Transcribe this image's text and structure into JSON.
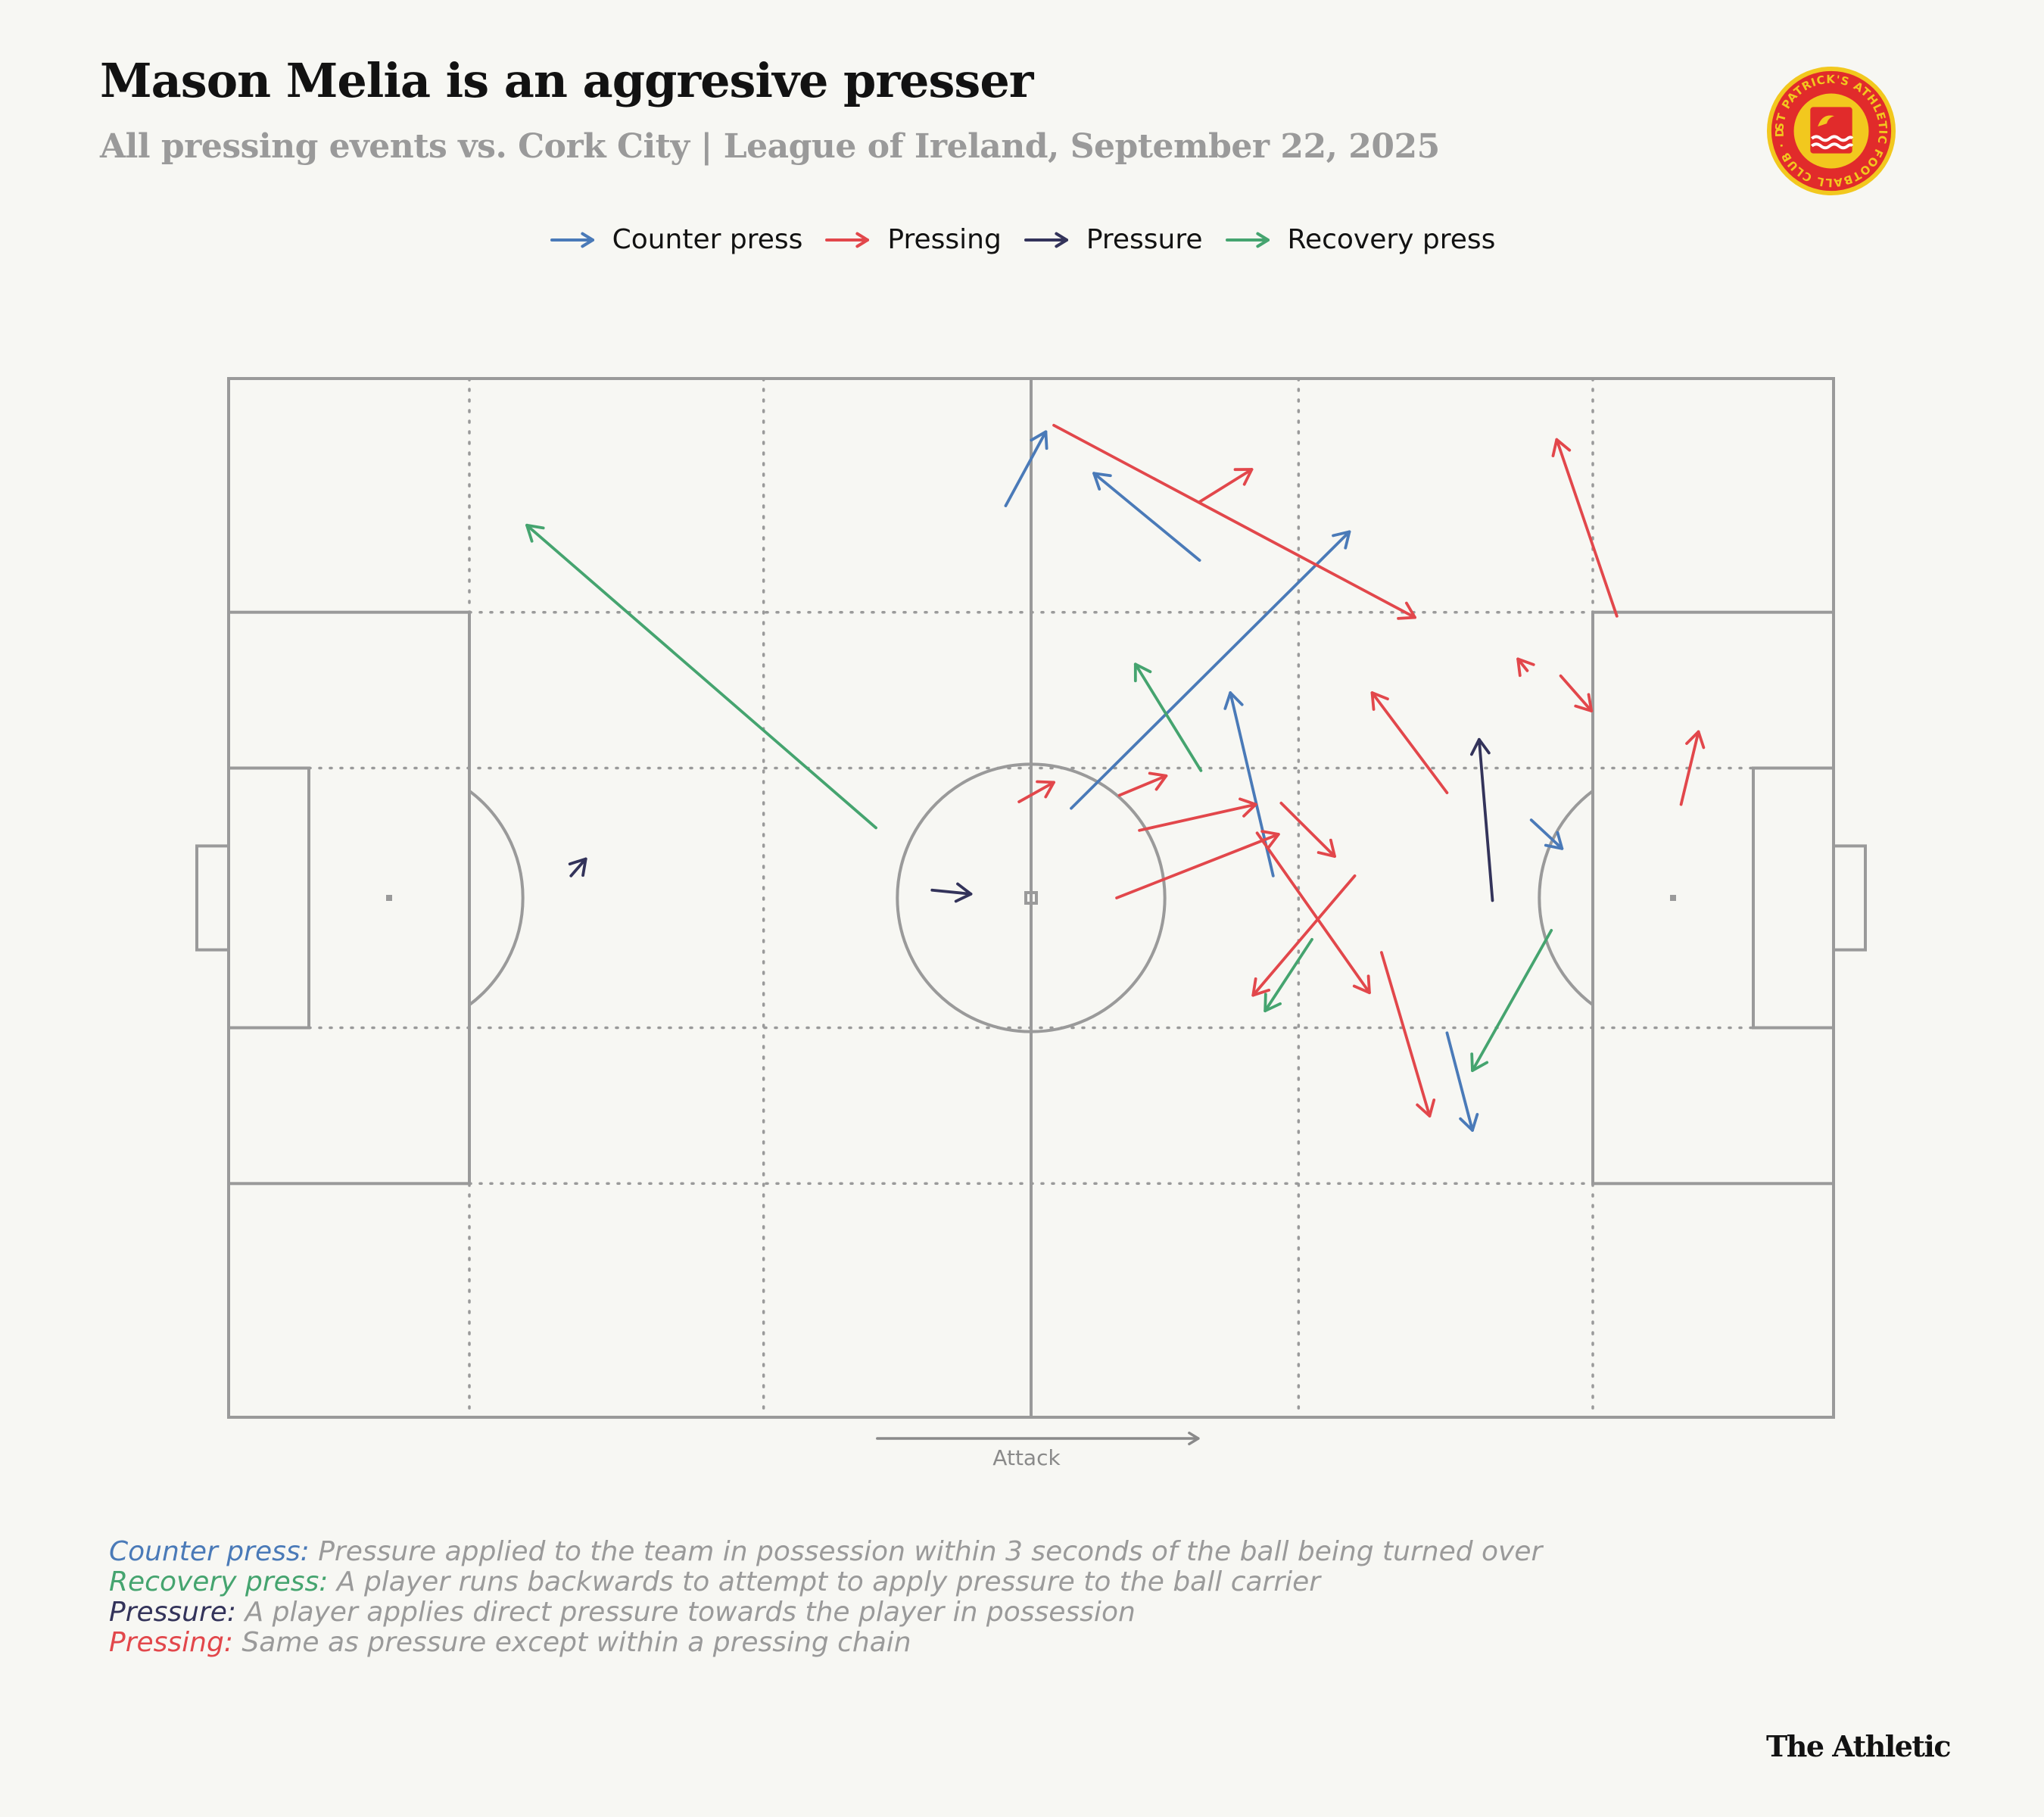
{
  "header": {
    "title": "Mason Melia is an aggresive presser",
    "subtitle": "All pressing events vs. Cork City | League of Ireland, September 22, 2025"
  },
  "crest": {
    "ring_text": "ST PATRICK'S ATHLETIC FOOTBALL CLUB · DUBLIN 1929 ·"
  },
  "legend": [
    {
      "label": "Counter press",
      "color": "#4a7ab8"
    },
    {
      "label": "Pressing",
      "color": "#e2474b"
    },
    {
      "label": "Pressure",
      "color": "#33335a"
    },
    {
      "label": "Recovery press",
      "color": "#45a46f"
    }
  ],
  "colors": {
    "counter": "#4a7ab8",
    "pressing": "#e2474b",
    "pressure": "#33335a",
    "recovery": "#45a46f",
    "pitch_line": "#9a9a9a"
  },
  "chart_data": {
    "type": "scatter",
    "title": "Mason Melia is an aggresive presser",
    "subtitle": "All pressing events vs. Cork City | League of Ireland, September 22, 2025",
    "pitch": {
      "length": 120,
      "width": 80,
      "attack_direction": "left-to-right"
    },
    "direction_label": "Attack",
    "legend_position": "top-center",
    "events": [
      {
        "type": "counter",
        "x1": 58.1,
        "y1": 9.8,
        "x2": 61.1,
        "y2": 4.1
      },
      {
        "type": "counter",
        "x1": 72.6,
        "y1": 14.0,
        "x2": 64.7,
        "y2": 7.3
      },
      {
        "type": "counter",
        "x1": 63.0,
        "y1": 33.1,
        "x2": 83.8,
        "y2": 11.8
      },
      {
        "type": "counter",
        "x1": 78.1,
        "y1": 38.3,
        "x2": 74.9,
        "y2": 24.2
      },
      {
        "type": "counter",
        "x1": 97.4,
        "y1": 34.0,
        "x2": 99.7,
        "y2": 36.2
      },
      {
        "type": "counter",
        "x1": 91.1,
        "y1": 50.4,
        "x2": 93.0,
        "y2": 57.9
      },
      {
        "type": "pressing",
        "x1": 61.7,
        "y1": 3.6,
        "x2": 88.7,
        "y2": 18.4
      },
      {
        "type": "pressing",
        "x1": 72.6,
        "y1": 9.5,
        "x2": 76.5,
        "y2": 7.0
      },
      {
        "type": "pressing",
        "x1": 103.8,
        "y1": 18.3,
        "x2": 99.3,
        "y2": 4.7
      },
      {
        "type": "pressing",
        "x1": 97.1,
        "y1": 22.5,
        "x2": 96.4,
        "y2": 21.6
      },
      {
        "type": "pressing",
        "x1": 99.6,
        "y1": 22.9,
        "x2": 101.9,
        "y2": 25.6
      },
      {
        "type": "pressing",
        "x1": 91.1,
        "y1": 31.9,
        "x2": 85.5,
        "y2": 24.2
      },
      {
        "type": "pressing",
        "x1": 108.6,
        "y1": 32.8,
        "x2": 109.9,
        "y2": 27.2
      },
      {
        "type": "pressing",
        "x1": 59.1,
        "y1": 32.6,
        "x2": 61.7,
        "y2": 31.1
      },
      {
        "type": "pressing",
        "x1": 66.6,
        "y1": 32.1,
        "x2": 70.1,
        "y2": 30.6
      },
      {
        "type": "pressing",
        "x1": 68.1,
        "y1": 34.8,
        "x2": 76.8,
        "y2": 32.8
      },
      {
        "type": "pressing",
        "x1": 66.4,
        "y1": 40.0,
        "x2": 78.5,
        "y2": 35.1
      },
      {
        "type": "pressing",
        "x1": 78.7,
        "y1": 32.7,
        "x2": 82.7,
        "y2": 36.8
      },
      {
        "type": "pressing",
        "x1": 84.2,
        "y1": 38.3,
        "x2": 76.6,
        "y2": 47.5
      },
      {
        "type": "pressing",
        "x1": 76.9,
        "y1": 35.0,
        "x2": 85.3,
        "y2": 47.3
      },
      {
        "type": "pressing",
        "x1": 86.2,
        "y1": 44.2,
        "x2": 89.8,
        "y2": 56.8
      },
      {
        "type": "pressure",
        "x1": 25.6,
        "y1": 38.3,
        "x2": 26.7,
        "y2": 37.0
      },
      {
        "type": "pressure",
        "x1": 52.6,
        "y1": 39.4,
        "x2": 55.5,
        "y2": 39.7
      },
      {
        "type": "pressure",
        "x1": 94.5,
        "y1": 40.2,
        "x2": 93.5,
        "y2": 27.8
      },
      {
        "type": "recovery",
        "x1": 48.4,
        "y1": 34.6,
        "x2": 22.3,
        "y2": 11.3
      },
      {
        "type": "recovery",
        "x1": 72.7,
        "y1": 30.2,
        "x2": 67.8,
        "y2": 22.0
      },
      {
        "type": "recovery",
        "x1": 81.0,
        "y1": 43.2,
        "x2": 77.5,
        "y2": 48.7
      },
      {
        "type": "recovery",
        "x1": 98.9,
        "y1": 42.5,
        "x2": 93.0,
        "y2": 53.3
      }
    ]
  },
  "definitions": [
    {
      "term": "Counter press:",
      "text": " Pressure applied to the team in possession within 3 seconds of the ball being turned over",
      "color": "#4a7ab8"
    },
    {
      "term": "Recovery press:",
      "text": " A player runs backwards to attempt to apply pressure to the ball carrier",
      "color": "#45a46f"
    },
    {
      "term": "Pressure:",
      "text": " A player applies direct pressure towards the player in possession",
      "color": "#33335a"
    },
    {
      "term": "Pressing:",
      "text": " Same as pressure except within a pressing chain",
      "color": "#e2474b"
    }
  ],
  "brand": "The Athletic"
}
